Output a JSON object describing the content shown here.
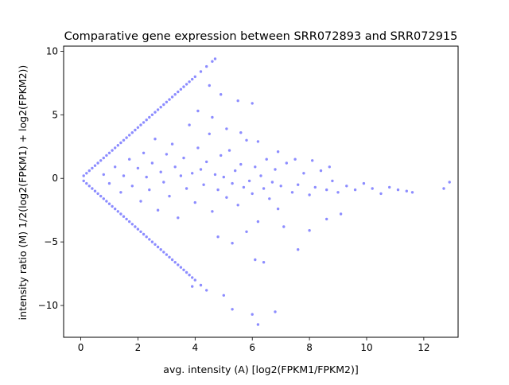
{
  "chart_data": {
    "type": "scatter",
    "title": "Comparative gene expression between SRR072893 and SRR072915",
    "xlabel": "avg. intensity (A) [log2(FPKM1/FPKM2)]",
    "ylabel": "intensity ratio (M) 1/2(log2(FPKM1) + log2(FPKM2))",
    "xlim": [
      -0.6,
      13.2
    ],
    "ylim": [
      -12.5,
      10.4
    ],
    "xticks": [
      0,
      2,
      4,
      6,
      8,
      10,
      12
    ],
    "yticks": [
      -10,
      -5,
      0,
      5,
      10
    ],
    "grid": false,
    "color": "#0000ff",
    "point_alpha": 0.15,
    "series": [
      {
        "points": [
          [
            0.1,
            0.2
          ],
          [
            0.2,
            0.4
          ],
          [
            0.3,
            0.6
          ],
          [
            0.4,
            0.8
          ],
          [
            0.5,
            1.0
          ],
          [
            0.6,
            1.2
          ],
          [
            0.7,
            1.4
          ],
          [
            0.8,
            1.6
          ],
          [
            0.9,
            1.8
          ],
          [
            1.0,
            2.0
          ],
          [
            1.1,
            2.2
          ],
          [
            1.2,
            2.4
          ],
          [
            1.3,
            2.6
          ],
          [
            1.4,
            2.8
          ],
          [
            1.5,
            3.0
          ],
          [
            1.6,
            3.2
          ],
          [
            1.7,
            3.4
          ],
          [
            1.8,
            3.6
          ],
          [
            1.9,
            3.8
          ],
          [
            2.0,
            4.0
          ],
          [
            2.1,
            4.2
          ],
          [
            2.2,
            4.4
          ],
          [
            2.3,
            4.6
          ],
          [
            2.4,
            4.8
          ],
          [
            2.5,
            5.0
          ],
          [
            2.6,
            5.2
          ],
          [
            2.7,
            5.4
          ],
          [
            2.8,
            5.6
          ],
          [
            2.9,
            5.8
          ],
          [
            3.0,
            6.0
          ],
          [
            3.1,
            6.2
          ],
          [
            3.2,
            6.4
          ],
          [
            3.3,
            6.6
          ],
          [
            3.4,
            6.8
          ],
          [
            3.5,
            7.0
          ],
          [
            3.6,
            7.2
          ],
          [
            3.7,
            7.4
          ],
          [
            3.8,
            7.6
          ],
          [
            3.9,
            7.8
          ],
          [
            4.0,
            8.0
          ],
          [
            4.2,
            8.4
          ],
          [
            4.4,
            8.8
          ],
          [
            4.6,
            9.2
          ],
          [
            4.7,
            9.4
          ],
          [
            0.1,
            -0.2
          ],
          [
            0.2,
            -0.4
          ],
          [
            0.3,
            -0.6
          ],
          [
            0.4,
            -0.8
          ],
          [
            0.5,
            -1.0
          ],
          [
            0.6,
            -1.2
          ],
          [
            0.7,
            -1.4
          ],
          [
            0.8,
            -1.6
          ],
          [
            0.9,
            -1.8
          ],
          [
            1.0,
            -2.0
          ],
          [
            1.1,
            -2.2
          ],
          [
            1.2,
            -2.4
          ],
          [
            1.3,
            -2.6
          ],
          [
            1.4,
            -2.8
          ],
          [
            1.5,
            -3.0
          ],
          [
            1.6,
            -3.2
          ],
          [
            1.7,
            -3.4
          ],
          [
            1.8,
            -3.6
          ],
          [
            1.9,
            -3.8
          ],
          [
            2.0,
            -4.0
          ],
          [
            2.1,
            -4.2
          ],
          [
            2.2,
            -4.4
          ],
          [
            2.3,
            -4.6
          ],
          [
            2.4,
            -4.8
          ],
          [
            2.5,
            -5.0
          ],
          [
            2.6,
            -5.2
          ],
          [
            2.7,
            -5.4
          ],
          [
            2.8,
            -5.6
          ],
          [
            2.9,
            -5.8
          ],
          [
            3.0,
            -6.0
          ],
          [
            3.1,
            -6.2
          ],
          [
            3.2,
            -6.4
          ],
          [
            3.3,
            -6.6
          ],
          [
            3.4,
            -6.8
          ],
          [
            3.5,
            -7.0
          ],
          [
            3.6,
            -7.2
          ],
          [
            3.7,
            -7.4
          ],
          [
            3.8,
            -7.6
          ],
          [
            3.9,
            -7.8
          ],
          [
            4.0,
            -8.0
          ],
          [
            4.2,
            -8.4
          ],
          [
            4.4,
            -8.8
          ],
          [
            0.8,
            0.3
          ],
          [
            1.0,
            -0.4
          ],
          [
            1.2,
            0.9
          ],
          [
            1.4,
            -1.1
          ],
          [
            1.5,
            0.2
          ],
          [
            1.7,
            1.5
          ],
          [
            1.8,
            -0.6
          ],
          [
            2.0,
            0.8
          ],
          [
            2.1,
            -1.8
          ],
          [
            2.2,
            2.0
          ],
          [
            2.3,
            0.1
          ],
          [
            2.4,
            -0.9
          ],
          [
            2.5,
            1.2
          ],
          [
            2.6,
            3.1
          ],
          [
            2.7,
            -2.5
          ],
          [
            2.8,
            0.5
          ],
          [
            2.9,
            -0.3
          ],
          [
            3.0,
            1.9
          ],
          [
            3.1,
            -1.4
          ],
          [
            3.2,
            2.7
          ],
          [
            3.3,
            0.9
          ],
          [
            3.4,
            -3.1
          ],
          [
            3.5,
            0.2
          ],
          [
            3.6,
            1.6
          ],
          [
            3.7,
            -0.8
          ],
          [
            3.8,
            4.2
          ],
          [
            3.9,
            0.4
          ],
          [
            4.0,
            -1.9
          ],
          [
            4.1,
            2.4
          ],
          [
            4.2,
            0.7
          ],
          [
            4.3,
            -0.5
          ],
          [
            4.4,
            1.3
          ],
          [
            4.5,
            3.5
          ],
          [
            4.6,
            -2.6
          ],
          [
            4.7,
            0.3
          ],
          [
            4.8,
            -0.9
          ],
          [
            4.9,
            1.8
          ],
          [
            5.0,
            0.1
          ],
          [
            5.1,
            -1.5
          ],
          [
            5.2,
            2.2
          ],
          [
            5.3,
            -0.4
          ],
          [
            5.4,
            0.6
          ],
          [
            5.5,
            -2.1
          ],
          [
            5.6,
            1.1
          ],
          [
            5.7,
            -0.7
          ],
          [
            5.8,
            3.0
          ],
          [
            5.9,
            -0.2
          ],
          [
            6.0,
            -1.2
          ],
          [
            6.1,
            0.9
          ],
          [
            6.2,
            -3.4
          ],
          [
            6.3,
            0.2
          ],
          [
            6.4,
            -0.8
          ],
          [
            6.5,
            1.5
          ],
          [
            6.6,
            -1.6
          ],
          [
            6.7,
            -0.3
          ],
          [
            6.8,
            0.7
          ],
          [
            6.9,
            -2.4
          ],
          [
            7.0,
            -0.6
          ],
          [
            7.2,
            1.2
          ],
          [
            7.4,
            -1.1
          ],
          [
            7.6,
            -0.5
          ],
          [
            7.8,
            0.4
          ],
          [
            8.0,
            -1.3
          ],
          [
            8.2,
            -0.7
          ],
          [
            8.4,
            0.6
          ],
          [
            8.6,
            -0.9
          ],
          [
            8.8,
            -0.2
          ],
          [
            9.0,
            -1.1
          ],
          [
            9.3,
            -0.6
          ],
          [
            9.6,
            -0.9
          ],
          [
            9.9,
            -0.4
          ],
          [
            10.2,
            -0.8
          ],
          [
            10.5,
            -1.2
          ],
          [
            10.8,
            -0.7
          ],
          [
            11.1,
            -0.9
          ],
          [
            11.4,
            -1.0
          ],
          [
            11.6,
            -1.1
          ],
          [
            12.7,
            -0.8
          ],
          [
            12.9,
            -0.3
          ],
          [
            4.1,
            5.3
          ],
          [
            4.6,
            4.8
          ],
          [
            5.1,
            3.9
          ],
          [
            5.6,
            3.6
          ],
          [
            6.2,
            2.9
          ],
          [
            6.9,
            2.1
          ],
          [
            7.5,
            1.5
          ],
          [
            8.1,
            1.4
          ],
          [
            8.7,
            0.9
          ],
          [
            4.8,
            -4.6
          ],
          [
            5.3,
            -5.1
          ],
          [
            5.8,
            -4.2
          ],
          [
            6.1,
            -6.4
          ],
          [
            6.4,
            -6.6
          ],
          [
            7.1,
            -3.8
          ],
          [
            7.6,
            -5.6
          ],
          [
            8.0,
            -4.1
          ],
          [
            8.6,
            -3.2
          ],
          [
            9.1,
            -2.8
          ],
          [
            5.0,
            -9.2
          ],
          [
            5.3,
            -10.3
          ],
          [
            6.0,
            -10.7
          ],
          [
            6.2,
            -11.5
          ],
          [
            6.8,
            -10.5
          ],
          [
            4.5,
            7.3
          ],
          [
            4.9,
            6.6
          ],
          [
            5.5,
            6.1
          ],
          [
            6.0,
            5.9
          ],
          [
            3.9,
            -8.5
          ]
        ]
      }
    ]
  }
}
